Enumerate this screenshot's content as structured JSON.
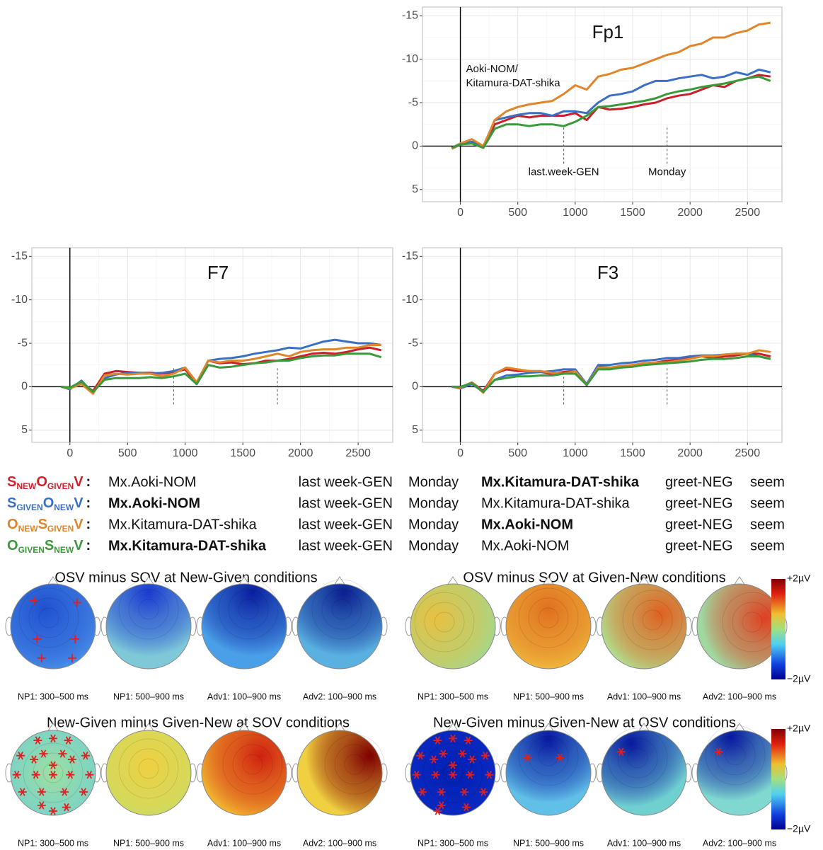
{
  "chart_data": [
    {
      "type": "line",
      "title": "Fp1",
      "y_inverted": true,
      "grid": true,
      "xlim": [
        -330,
        2800
      ],
      "xticks": [
        0,
        500,
        1000,
        1500,
        2000,
        2500
      ],
      "ylim": [
        -16,
        6.4
      ],
      "yticks": [
        -15,
        -10,
        -5,
        0,
        5
      ],
      "annotation": [
        "Aoki-NOM/",
        "Kitamura-DAT-shika"
      ],
      "events": [
        {
          "x": 900,
          "label": "last.week-GEN"
        },
        {
          "x": 1800,
          "label": "Monday"
        }
      ],
      "x": [
        -75,
        0,
        100,
        200,
        300,
        400,
        500,
        600,
        700,
        800,
        900,
        1000,
        1100,
        1200,
        1300,
        1400,
        1500,
        1600,
        1700,
        1800,
        1900,
        2000,
        2100,
        2200,
        2300,
        2400,
        2500,
        2600,
        2700
      ],
      "series": [
        {
          "color": "#c8202a",
          "values": [
            0.3,
            -0.2,
            -0.5,
            0,
            -2.5,
            -3,
            -3.5,
            -3.3,
            -3.5,
            -3.5,
            -3.5,
            -3.8,
            -3,
            -4.5,
            -4.2,
            -4.3,
            -4.5,
            -4.8,
            -5,
            -5.5,
            -5.8,
            -6,
            -6.5,
            -7,
            -6.8,
            -7.5,
            -7.8,
            -8.2,
            -8
          ]
        },
        {
          "color": "#3a6fc4",
          "values": [
            0.2,
            -0.3,
            -0.5,
            0.2,
            -3,
            -3.3,
            -3.6,
            -3.8,
            -3.8,
            -3.5,
            -4,
            -4,
            -3.8,
            -5,
            -5.8,
            -6,
            -6.3,
            -7,
            -7.5,
            -7.5,
            -7.8,
            -8,
            -8.2,
            -7.8,
            -8,
            -8.5,
            -8.2,
            -8.8,
            -8.5
          ]
        },
        {
          "color": "#e0852a",
          "values": [
            0.3,
            -0.3,
            -0.8,
            0,
            -3,
            -4,
            -4.5,
            -4.8,
            -5,
            -5.2,
            -6,
            -7,
            -6.5,
            -8,
            -8.3,
            -8.8,
            -9,
            -9.5,
            -10,
            -10.5,
            -10.8,
            -11.5,
            -11.8,
            -12.5,
            -12.5,
            -13,
            -13.3,
            -14,
            -14.2
          ]
        },
        {
          "color": "#3a9a3a",
          "values": [
            0.2,
            -0.2,
            -0.3,
            0.2,
            -2,
            -2.5,
            -2.5,
            -2.3,
            -2.5,
            -2.5,
            -2.3,
            -2.8,
            -3.5,
            -4.5,
            -4.6,
            -4.8,
            -5,
            -5.2,
            -5.5,
            -6,
            -6.3,
            -6.5,
            -6.8,
            -7,
            -7.2,
            -7.5,
            -7.8,
            -8,
            -7.5
          ]
        }
      ]
    },
    {
      "type": "line",
      "title": "F7",
      "y_inverted": true,
      "grid": true,
      "xlim": [
        -330,
        2800
      ],
      "xticks": [
        0,
        500,
        1000,
        1500,
        2000,
        2500
      ],
      "ylim": [
        -16,
        6.4
      ],
      "yticks": [
        -15,
        -10,
        -5,
        0,
        5
      ],
      "events": [
        {
          "x": 900
        },
        {
          "x": 1800
        }
      ],
      "x": [
        -75,
        0,
        100,
        200,
        300,
        400,
        500,
        600,
        700,
        800,
        900,
        1000,
        1100,
        1200,
        1300,
        1400,
        1500,
        1600,
        1700,
        1800,
        1900,
        2000,
        2100,
        2200,
        2300,
        2400,
        2500,
        2600,
        2700
      ],
      "series": [
        {
          "color": "#c8202a",
          "values": [
            0,
            0.2,
            -0.5,
            0.5,
            -1.5,
            -1.8,
            -1.7,
            -1.6,
            -1.6,
            -1.5,
            -1.7,
            -2,
            -0.3,
            -3,
            -2.7,
            -2.8,
            -2.6,
            -2.7,
            -3,
            -3,
            -3.2,
            -3.5,
            -3.8,
            -3.9,
            -3.8,
            -4,
            -4.3,
            -4.5,
            -4.2
          ]
        },
        {
          "color": "#3a6fc4",
          "values": [
            0,
            0.3,
            -0.7,
            0.7,
            -1,
            -1.4,
            -1.6,
            -1.6,
            -1.5,
            -1.6,
            -1.8,
            -2.2,
            -0.5,
            -3,
            -3.2,
            -3.3,
            -3.5,
            -3.8,
            -4,
            -4.2,
            -4.5,
            -4.4,
            -4.8,
            -5.2,
            -5.4,
            -5.2,
            -5,
            -5,
            -4.8
          ]
        },
        {
          "color": "#e0852a",
          "values": [
            0,
            0.2,
            -0.3,
            0.8,
            -1.3,
            -1.5,
            -1.4,
            -1.5,
            -1.5,
            -1.2,
            -1.5,
            -2.2,
            -0.5,
            -3,
            -2.8,
            -3,
            -3,
            -3.2,
            -3.5,
            -3.8,
            -3.5,
            -4,
            -4.2,
            -4.3,
            -4.3,
            -4.5,
            -4.5,
            -4.8,
            -4.8
          ]
        },
        {
          "color": "#3a9a3a",
          "values": [
            0,
            0.1,
            -0.6,
            0.6,
            -0.8,
            -1,
            -1,
            -1,
            -1.1,
            -1,
            -1.2,
            -1.5,
            -0.3,
            -2.5,
            -2.2,
            -2.3,
            -2.5,
            -2.7,
            -2.8,
            -3,
            -3,
            -3.3,
            -3.5,
            -3.6,
            -3.6,
            -3.8,
            -3.8,
            -3.8,
            -3.4
          ]
        }
      ]
    },
    {
      "type": "line",
      "title": "F3",
      "y_inverted": true,
      "grid": true,
      "xlim": [
        -330,
        2800
      ],
      "xticks": [
        0,
        500,
        1000,
        1500,
        2000,
        2500
      ],
      "ylim": [
        -16,
        6.4
      ],
      "yticks": [
        -15,
        -10,
        -5,
        0,
        5
      ],
      "events": [
        {
          "x": 900
        },
        {
          "x": 1800
        }
      ],
      "x": [
        -75,
        0,
        100,
        200,
        300,
        400,
        500,
        600,
        700,
        800,
        900,
        1000,
        1100,
        1200,
        1300,
        1400,
        1500,
        1600,
        1700,
        1800,
        1900,
        2000,
        2100,
        2200,
        2300,
        2400,
        2500,
        2600,
        2700
      ],
      "series": [
        {
          "color": "#c8202a",
          "values": [
            0,
            0.1,
            -0.5,
            0.5,
            -1.5,
            -2,
            -1.8,
            -1.8,
            -1.7,
            -1.5,
            -1.7,
            -1.8,
            -0.2,
            -2.3,
            -2.2,
            -2.3,
            -2.5,
            -2.7,
            -2.8,
            -3,
            -3.1,
            -3.3,
            -3.5,
            -3.3,
            -3.5,
            -3.6,
            -3.8,
            -3.8,
            -3.5
          ]
        },
        {
          "color": "#3a6fc4",
          "values": [
            0,
            0.2,
            -0.3,
            0.6,
            -0.8,
            -1.3,
            -1.4,
            -1.6,
            -1.7,
            -1.8,
            -2,
            -2,
            -0.3,
            -2.5,
            -2.5,
            -2.7,
            -2.8,
            -3,
            -3.1,
            -3.3,
            -3.3,
            -3.5,
            -3.6,
            -3.6,
            -3.7,
            -3.8,
            -3.8,
            -3.5,
            -3.2
          ]
        },
        {
          "color": "#e0852a",
          "values": [
            0,
            0.1,
            -0.5,
            0.7,
            -1.5,
            -2.2,
            -2,
            -1.8,
            -1.8,
            -1.6,
            -1.5,
            -1.8,
            -0.2,
            -2.2,
            -2.2,
            -2.4,
            -2.5,
            -2.7,
            -2.8,
            -2.8,
            -3,
            -3.2,
            -3.5,
            -3.5,
            -3.7,
            -3.8,
            -3.8,
            -4.2,
            -4
          ]
        },
        {
          "color": "#3a9a3a",
          "values": [
            0,
            0,
            -0.4,
            0.6,
            -0.8,
            -1,
            -1.2,
            -1.2,
            -1.3,
            -1.3,
            -1.5,
            -1.5,
            -0.2,
            -2,
            -2,
            -2.2,
            -2.3,
            -2.5,
            -2.6,
            -2.7,
            -2.8,
            -2.9,
            -3.1,
            -3.2,
            -3.2,
            -3.3,
            -3.5,
            -3.5,
            -3.2
          ]
        }
      ]
    }
  ],
  "conditions": {
    "separator": ":",
    "rows": [
      {
        "color": "#d0202a",
        "label": [
          {
            "main": "S",
            "sub": "NEW"
          },
          {
            "main": "O",
            "sub": "GIVEN"
          },
          {
            "main": "V"
          }
        ],
        "words": [
          "Mx.Aoki-NOM",
          "last week-GEN",
          "Monday",
          "Mx.Kitamura-DAT-shika",
          "greet-NEG",
          "seem"
        ],
        "bold": [
          3
        ]
      },
      {
        "color": "#3a6fc4",
        "label": [
          {
            "main": "S",
            "sub": "GIVEN"
          },
          {
            "main": "O",
            "sub": "NEW"
          },
          {
            "main": "V"
          }
        ],
        "words": [
          "Mx.Aoki-NOM",
          "last week-GEN",
          "Monday",
          "Mx.Kitamura-DAT-shika",
          "greet-NEG",
          "seem"
        ],
        "bold": [
          0
        ]
      },
      {
        "color": "#e0852a",
        "label": [
          {
            "main": "O",
            "sub": "NEW"
          },
          {
            "main": "S",
            "sub": "GIVEN"
          },
          {
            "main": "V"
          }
        ],
        "words": [
          "Mx.Kitamura-DAT-shika",
          "last week-GEN",
          "Monday",
          "Mx.Aoki-NOM",
          "greet-NEG",
          "seem"
        ],
        "bold": [
          3
        ]
      },
      {
        "color": "#3a9a3a",
        "label": [
          {
            "main": "O",
            "sub": "GIVEN"
          },
          {
            "main": "S",
            "sub": "NEW"
          },
          {
            "main": "V"
          }
        ],
        "words": [
          "Mx.Kitamura-DAT-shika",
          "last week-GEN",
          "Monday",
          "Mx.Aoki-NOM",
          "greet-NEG",
          "seem"
        ],
        "bold": [
          0
        ]
      }
    ]
  },
  "topomaps": {
    "scale_labels": [
      "+2µV",
      "−2µV"
    ],
    "groups": [
      {
        "title": "OSV minus SOV at  New-Given conditions",
        "labels": [
          "NP1: 300–500 ms",
          "NP1: 500–900 ms",
          "Adv1: 100–900 ms",
          "Adv2: 100–900 ms"
        ],
        "fills": [
          [
            "#2050d0",
            "#4a90e8"
          ],
          [
            "#1a3ad0",
            "#7ec8d8"
          ],
          [
            "#0a1ea0",
            "#4aa0e8"
          ],
          [
            "#0a1e90",
            "#5ab0e0"
          ]
        ]
      },
      {
        "title": "OSV minus SOV at Given-New conditions",
        "labels": [
          "NP1: 300–500 ms",
          "NP1: 500–900 ms",
          "Adv1: 100–900 ms",
          "Adv2: 100–900 ms"
        ],
        "fills": [
          [
            "#e8c040",
            "#a0d890"
          ],
          [
            "#e07020",
            "#f0c040"
          ],
          [
            "#e06020",
            "#b0e090"
          ],
          [
            "#e04020",
            "#a0d8a0"
          ]
        ]
      },
      {
        "title": "New-Given minus Given-New at SOV conditions",
        "labels": [
          "NP1: 300–500 ms",
          "NP1: 500–900 ms",
          "Adv1: 100–900 ms",
          "Adv2: 100–900 ms"
        ],
        "fills": [
          [
            "#a0e0a0",
            "#60c8e0"
          ],
          [
            "#f0d040",
            "#c0e070"
          ],
          [
            "#d02010",
            "#f0b030"
          ],
          [
            "#800000",
            "#f0d040"
          ]
        ]
      },
      {
        "title": "New-Given minus Given-New at OSV conditions",
        "labels": [
          "NP1: 300–500 ms",
          "NP1: 500–900 ms",
          "Adv1: 100–900 ms",
          "Adv2: 100–900 ms"
        ],
        "fills": [
          [
            "#0020b0",
            "#1030d0"
          ],
          [
            "#0818a0",
            "#60c0e8"
          ],
          [
            "#0818a0",
            "#70d0d0"
          ],
          [
            "#0818a0",
            "#80d8d0"
          ]
        ]
      }
    ]
  }
}
